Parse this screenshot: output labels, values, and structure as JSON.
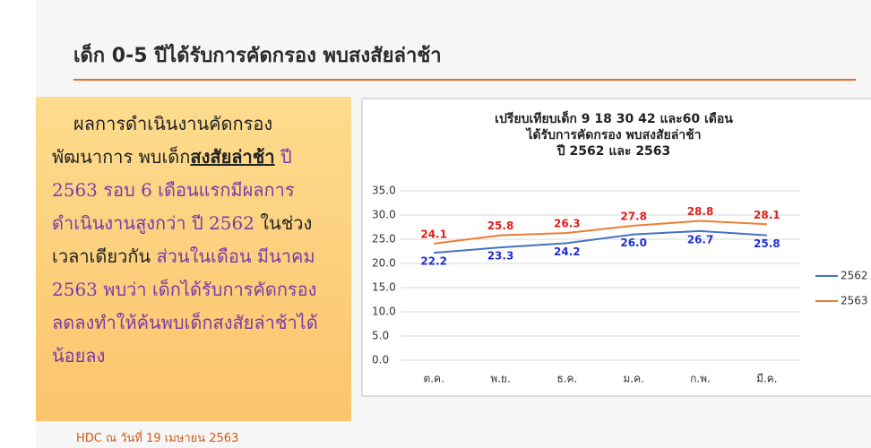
{
  "header": {
    "title": "เด็ก 0-5 ปีได้รับการคัดกรอง พบสงสัยล่าช้า"
  },
  "text_box": {
    "segments": [
      "ผลการดำเนินงานคัดกรอง พัฒนาการ พบเด็ก",
      "สงสัยล่าช้า",
      "ปี 2563 รอบ 6 เดือนแรกมีผลการดำเนินงานสูงกว่า ปี 2562",
      "ในช่วงเวลาเดียวกัน",
      "ส่วนในเดือน มีนาคม 2563 พบว่า เด็กได้รับการคัดกรองลดลงทำให้ค้นพบเด็กสงสัยล่าช้าได้น้อยลง"
    ]
  },
  "footnote": "HDC ณ วันที่ 19 เมษายน 2563",
  "chart_data": {
    "type": "line",
    "title": [
      "เปรียบเทียบเด็ก 9 18 30 42 และ60 เดือน",
      "ได้รับการคัดกรอง พบสงสัยล่าช้า",
      "ปี 2562 และ 2563"
    ],
    "categories": [
      "ต.ค.",
      "พ.ย.",
      "ธ.ค.",
      "ม.ค.",
      "ก.พ.",
      "มี.ค."
    ],
    "series": [
      {
        "name": "2562",
        "color": "#4472c4",
        "values": [
          22.2,
          23.3,
          24.2,
          26.0,
          26.7,
          25.8
        ],
        "value_labels": [
          "22.2",
          "23.3",
          "24.2",
          "26.0",
          "26.7",
          "25.8"
        ],
        "label_color": "#1f2fd8"
      },
      {
        "name": "2563",
        "color": "#ed7d31",
        "values": [
          24.1,
          25.8,
          26.3,
          27.8,
          28.8,
          28.1
        ],
        "value_labels": [
          "24.1",
          "25.8",
          "26.3",
          "27.8",
          "28.8",
          "28.1"
        ],
        "label_color": "#e0201a"
      }
    ],
    "ylim": [
      0,
      35
    ],
    "yticks": [
      {
        "value": 0,
        "label": "0.0"
      },
      {
        "value": 5,
        "label": "5.0"
      },
      {
        "value": 10,
        "label": "10.0"
      },
      {
        "value": 15,
        "label": "15.0"
      },
      {
        "value": 20,
        "label": "20.0"
      },
      {
        "value": 25,
        "label": "25.0"
      },
      {
        "value": 30,
        "label": "30.0"
      },
      {
        "value": 35,
        "label": "35.0"
      }
    ],
    "grid": true,
    "legend": "right"
  }
}
